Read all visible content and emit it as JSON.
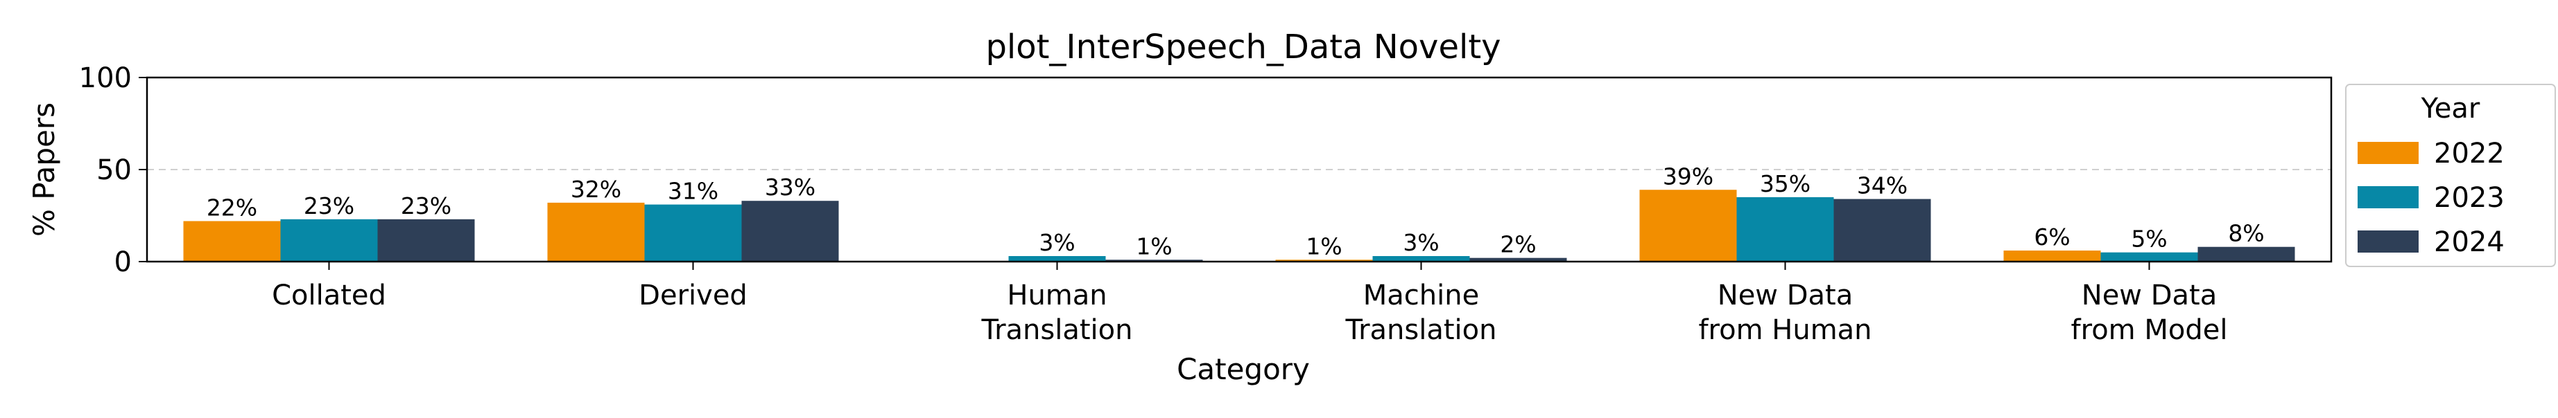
{
  "chart_data": {
    "type": "bar",
    "title": "plot_InterSpeech_Data Novelty",
    "xlabel": "Category",
    "ylabel": "% Papers",
    "ylim": [
      0,
      100
    ],
    "yticks": [
      0,
      50,
      100
    ],
    "grid": "horizontal dashed at 50",
    "categories": [
      [
        "Collated"
      ],
      [
        "Derived"
      ],
      [
        "Human",
        "Translation"
      ],
      [
        "Machine",
        "Translation"
      ],
      [
        "New Data",
        "from Human"
      ],
      [
        "New Data",
        "from Model"
      ]
    ],
    "series": [
      {
        "name": "2022",
        "color": "#f28e00",
        "values": [
          22,
          32,
          0,
          1,
          39,
          6
        ],
        "labels": [
          "22%",
          "32%",
          "",
          "1%",
          "39%",
          "6%"
        ]
      },
      {
        "name": "2023",
        "color": "#0788a6",
        "values": [
          23,
          31,
          3,
          3,
          35,
          5
        ],
        "labels": [
          "23%",
          "31%",
          "3%",
          "3%",
          "35%",
          "5%"
        ]
      },
      {
        "name": "2024",
        "color": "#2e3f57",
        "values": [
          23,
          33,
          1,
          2,
          34,
          8
        ],
        "labels": [
          "23%",
          "33%",
          "1%",
          "2%",
          "34%",
          "8%"
        ]
      }
    ],
    "legend": {
      "title": "Year",
      "placement": "outside-right"
    }
  }
}
